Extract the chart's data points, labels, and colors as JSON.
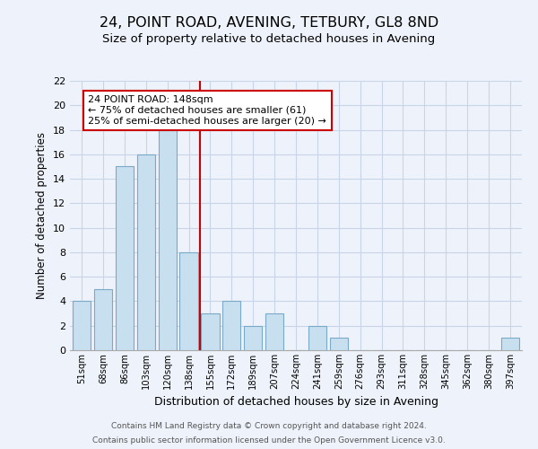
{
  "title": "24, POINT ROAD, AVENING, TETBURY, GL8 8ND",
  "subtitle": "Size of property relative to detached houses in Avening",
  "xlabel": "Distribution of detached houses by size in Avening",
  "ylabel": "Number of detached properties",
  "bar_labels": [
    "51sqm",
    "68sqm",
    "86sqm",
    "103sqm",
    "120sqm",
    "138sqm",
    "155sqm",
    "172sqm",
    "189sqm",
    "207sqm",
    "224sqm",
    "241sqm",
    "259sqm",
    "276sqm",
    "293sqm",
    "311sqm",
    "328sqm",
    "345sqm",
    "362sqm",
    "380sqm",
    "397sqm"
  ],
  "bar_values": [
    4,
    5,
    15,
    16,
    18,
    8,
    3,
    4,
    2,
    3,
    0,
    2,
    1,
    0,
    0,
    0,
    0,
    0,
    0,
    0,
    1
  ],
  "bar_color": "#c8dff0",
  "bar_edge_color": "#7aaac8",
  "vline_x": 5.5,
  "vline_color": "#cc0000",
  "annotation_text": "24 POINT ROAD: 148sqm\n← 75% of detached houses are smaller (61)\n25% of semi-detached houses are larger (20) →",
  "annotation_box_color": "#ffffff",
  "annotation_box_edge_color": "#cc0000",
  "ylim": [
    0,
    22
  ],
  "yticks": [
    0,
    2,
    4,
    6,
    8,
    10,
    12,
    14,
    16,
    18,
    20,
    22
  ],
  "grid_color": "#c8d4e8",
  "footer_line1": "Contains HM Land Registry data © Crown copyright and database right 2024.",
  "footer_line2": "Contains public sector information licensed under the Open Government Licence v3.0.",
  "background_color": "#eef2fa",
  "title_fontsize": 11.5,
  "subtitle_fontsize": 9.5,
  "annotation_fontsize": 8.0
}
